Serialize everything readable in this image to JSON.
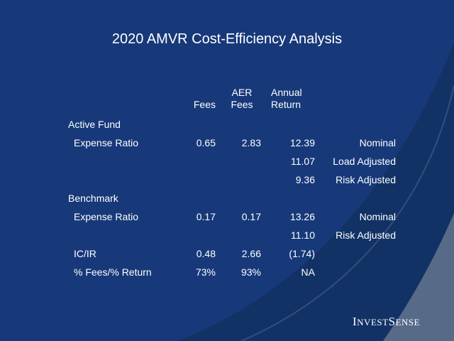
{
  "slide": {
    "title": "2020 AMVR Cost-Efficiency Analysis",
    "colors": {
      "background": "#1a3f7f",
      "accent_gray": "#6f7f95",
      "text": "#ffffff"
    }
  },
  "table": {
    "headers": {
      "fees": "Fees",
      "aer_fees_line1": "AER",
      "aer_fees_line2": "Fees",
      "annual_return_line1": "Annual",
      "annual_return_line2": "Return"
    },
    "active_fund": {
      "label": "Active Fund",
      "rows": [
        {
          "label": "Expense Ratio",
          "fees": "0.65",
          "aer_fees": "2.83",
          "annual_return": "12.39",
          "note": "Nominal"
        },
        {
          "label": "",
          "fees": "",
          "aer_fees": "",
          "annual_return": "11.07",
          "note": "Load Adjusted"
        },
        {
          "label": "",
          "fees": "",
          "aer_fees": "",
          "annual_return": "9.36",
          "note": "Risk Adjusted"
        }
      ]
    },
    "benchmark": {
      "label": "Benchmark",
      "rows": [
        {
          "label": "Expense Ratio",
          "fees": "0.17",
          "aer_fees": "0.17",
          "annual_return": "13.26",
          "note": "Nominal"
        },
        {
          "label": "",
          "fees": "",
          "aer_fees": "",
          "annual_return": "11.10",
          "note": "Risk Adjusted"
        }
      ]
    },
    "summary_rows": [
      {
        "label": "IC/IR",
        "fees": "0.48",
        "aer_fees": "2.66",
        "annual_return": "(1.74)",
        "note": ""
      },
      {
        "label": "% Fees/% Return",
        "fees": "73%",
        "aer_fees": "93%",
        "annual_return": "NA",
        "note": ""
      }
    ]
  },
  "logo": {
    "big_i": "I",
    "small_nvest": "NVEST",
    "big_s": "S",
    "small_ense": "ENSE"
  }
}
